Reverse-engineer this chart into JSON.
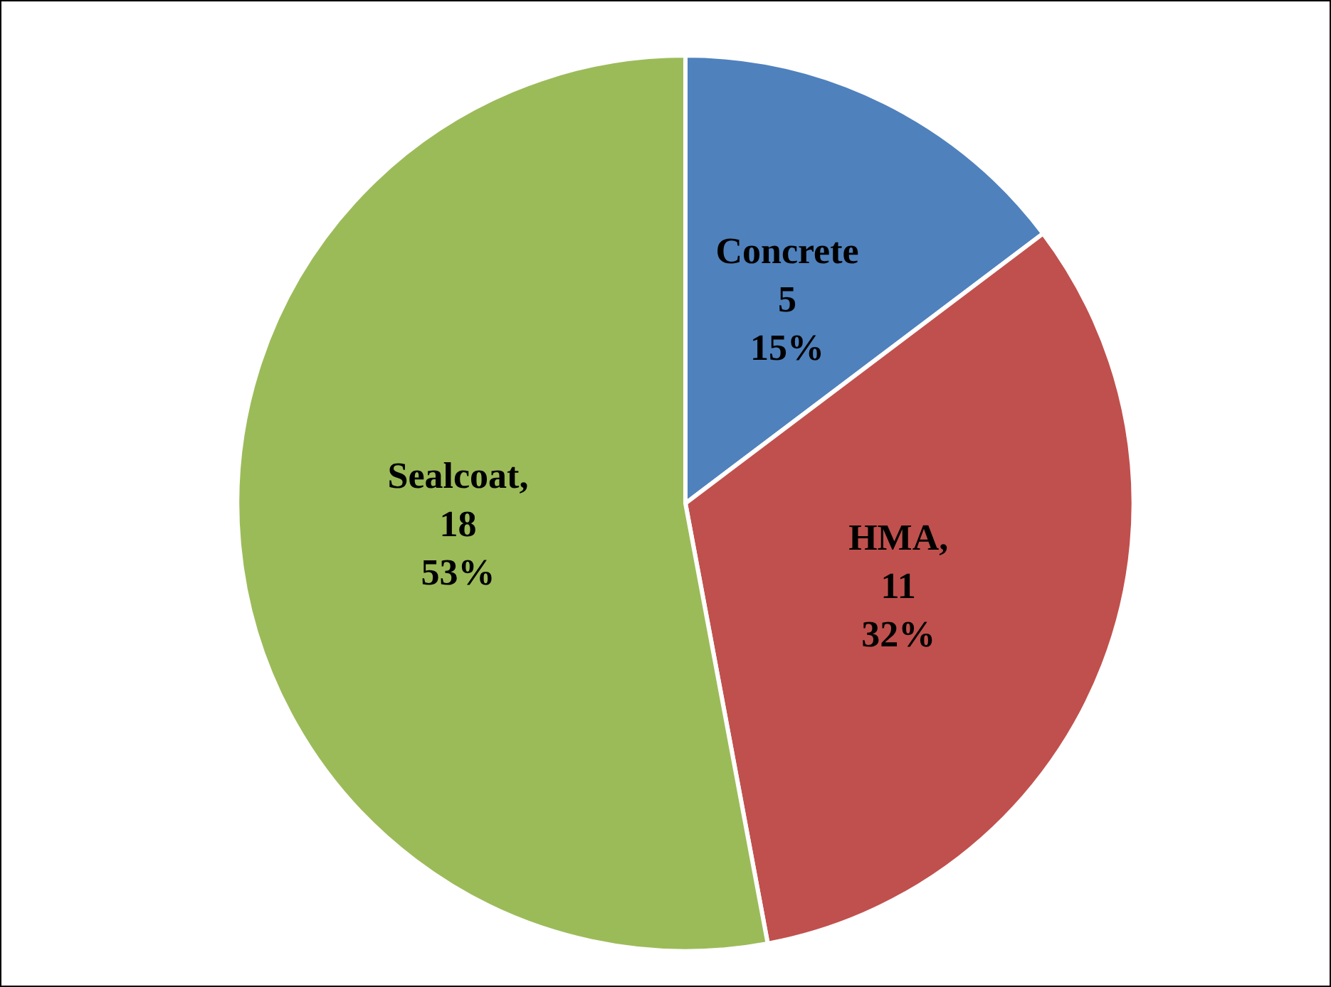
{
  "chart_data": {
    "type": "pie",
    "categories": [
      "Concrete",
      "HMA",
      "Sealcoat"
    ],
    "values": [
      5,
      11,
      18
    ],
    "colors": [
      "#4f81bd",
      "#c0504d",
      "#9bbb59"
    ],
    "value_labels": [
      "\n5\n15%",
      ",\n11\n32%",
      ",\n18\n53%"
    ],
    "legend": false
  }
}
